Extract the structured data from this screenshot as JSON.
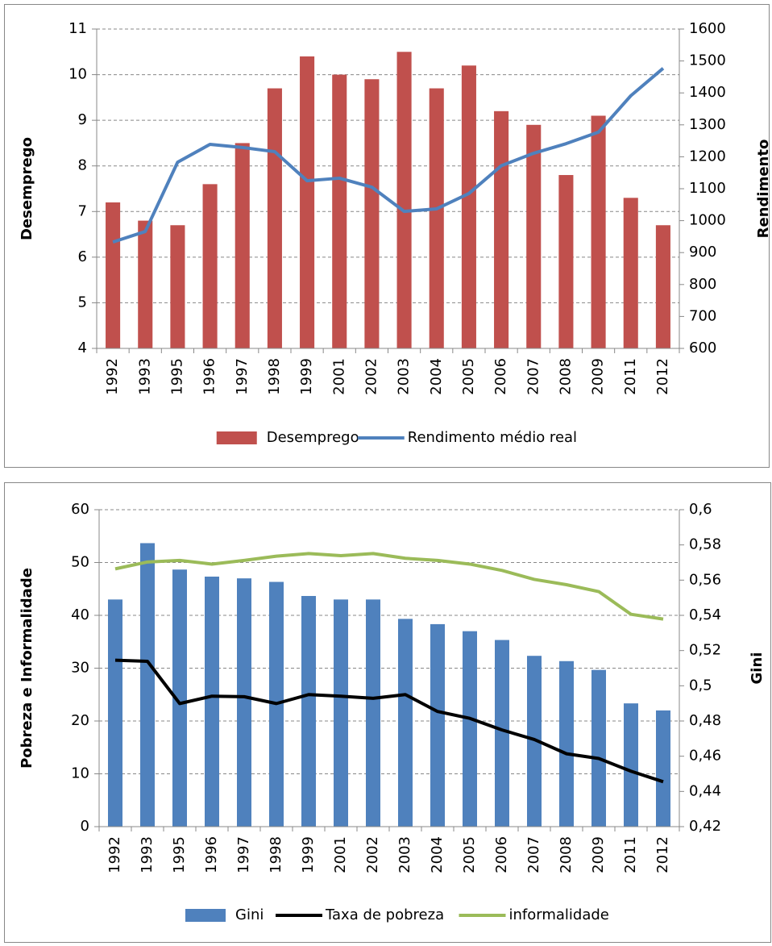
{
  "chart_data": [
    {
      "type": "bar",
      "y_label": "Desemprego",
      "y2_label": "Rendimento",
      "categories": [
        "1992",
        "1993",
        "1995",
        "1996",
        "1997",
        "1998",
        "1999",
        "2001",
        "2002",
        "2003",
        "2004",
        "2005",
        "2006",
        "2007",
        "2008",
        "2009",
        "2011",
        "2012"
      ],
      "series": [
        {
          "name": "Desemprego",
          "type": "bar",
          "color": "#c0504d",
          "values": [
            7.2,
            6.8,
            6.7,
            7.6,
            8.5,
            9.7,
            10.4,
            10.0,
            9.9,
            10.5,
            9.7,
            10.2,
            9.2,
            8.9,
            7.8,
            9.1,
            7.3,
            6.7
          ]
        },
        {
          "name": "Rendimento médio real",
          "type": "line",
          "axis": "y2",
          "color": "#4f81bd",
          "values": [
            933,
            966,
            1183,
            1239,
            1229,
            1216,
            1125,
            1133,
            1105,
            1029,
            1037,
            1085,
            1172,
            1211,
            1241,
            1277,
            1391,
            1477
          ]
        }
      ],
      "ylim": [
        4,
        11
      ],
      "yticks": [
        4,
        5,
        6,
        7,
        8,
        9,
        10,
        11
      ],
      "y2lim": [
        600,
        1600
      ],
      "y2ticks": [
        600,
        700,
        800,
        900,
        1000,
        1100,
        1200,
        1300,
        1400,
        1500,
        1600
      ],
      "grid": true,
      "legend": "bottom"
    },
    {
      "type": "bar",
      "y_label": "Pobreza e Informalidade",
      "y2_label": "Gini",
      "categories": [
        "1992",
        "1993",
        "1995",
        "1996",
        "1997",
        "1998",
        "1999",
        "2001",
        "2002",
        "2003",
        "2004",
        "2005",
        "2006",
        "2007",
        "2008",
        "2009",
        "2011",
        "2012"
      ],
      "series": [
        {
          "name": "Gini",
          "type": "bar",
          "axis": "y2",
          "color": "#4f81bd",
          "values": [
            0.549,
            0.581,
            0.566,
            0.562,
            0.561,
            0.559,
            0.551,
            0.549,
            0.549,
            0.538,
            0.535,
            0.531,
            0.526,
            0.517,
            0.514,
            0.509,
            0.49,
            0.486
          ]
        },
        {
          "name": "Taxa de pobreza",
          "type": "line",
          "color": "#000000",
          "values": [
            31.5,
            31.3,
            23.3,
            24.7,
            24.6,
            23.3,
            25.0,
            24.7,
            24.3,
            25.0,
            21.8,
            20.5,
            18.3,
            16.5,
            13.8,
            12.9,
            10.5,
            8.5
          ]
        },
        {
          "name": "informalidade",
          "type": "line",
          "color": "#9bbb59",
          "values": [
            48.8,
            50.1,
            50.4,
            49.7,
            50.4,
            51.2,
            51.7,
            51.3,
            51.7,
            50.8,
            50.4,
            49.7,
            48.5,
            46.8,
            45.8,
            44.5,
            40.2,
            39.3
          ]
        }
      ],
      "ylim": [
        0,
        60
      ],
      "yticks": [
        0,
        10,
        20,
        30,
        40,
        50,
        60
      ],
      "y2lim": [
        0.42,
        0.6
      ],
      "y2ticks": [
        {
          "value": 0.42,
          "label": "0,42"
        },
        {
          "value": 0.44,
          "label": "0,44"
        },
        {
          "value": 0.46,
          "label": "0,46"
        },
        {
          "value": 0.48,
          "label": "0,48"
        },
        {
          "value": 0.5,
          "label": "0,5"
        },
        {
          "value": 0.52,
          "label": "0,52"
        },
        {
          "value": 0.54,
          "label": "0,54"
        },
        {
          "value": 0.56,
          "label": "0,56"
        },
        {
          "value": 0.58,
          "label": "0,58"
        },
        {
          "value": 0.6,
          "label": "0,6"
        }
      ],
      "grid": true,
      "legend": "bottom"
    }
  ]
}
